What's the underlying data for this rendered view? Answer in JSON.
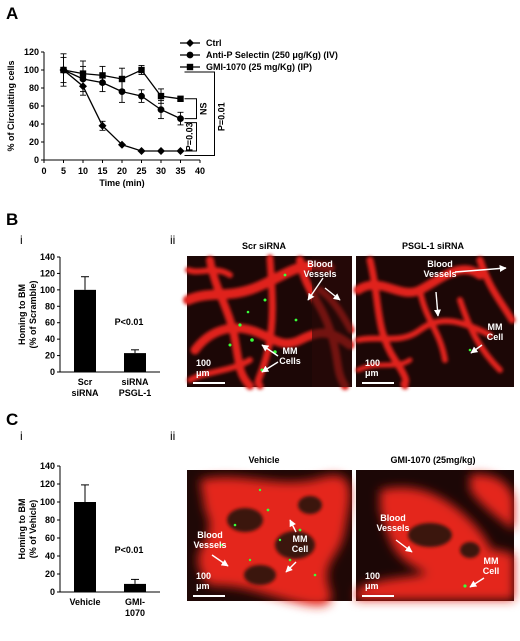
{
  "panels": {
    "A": "A",
    "B": "B",
    "C": "C",
    "B_i": "i",
    "B_ii": "ii",
    "C_i": "i",
    "C_ii": "ii"
  },
  "colors": {
    "vessel": "#e8251e",
    "cell": "#39ff39",
    "bg": "#1c0706"
  },
  "chart_data": [
    {
      "type": "line",
      "panel": "A",
      "xlabel": "Time (min)",
      "ylabel": "% of Circulating cells",
      "xlim": [
        0,
        40
      ],
      "ylim": [
        0,
        120
      ],
      "xticks": [
        0,
        5,
        10,
        15,
        20,
        25,
        30,
        35,
        40
      ],
      "yticks": [
        0,
        20,
        40,
        60,
        80,
        100,
        120
      ],
      "series": [
        {
          "name": "Ctrl",
          "marker": "diamond",
          "x": [
            5,
            10,
            15,
            20,
            25,
            30,
            35
          ],
          "y": [
            100,
            82,
            38,
            17,
            10,
            10,
            10
          ],
          "err": [
            0,
            10,
            5,
            0,
            0,
            0,
            0
          ]
        },
        {
          "name": "Anti-P Selectin (250 μg/Kg) (IV)",
          "marker": "circle",
          "x": [
            5,
            10,
            15,
            20,
            25,
            30,
            35
          ],
          "y": [
            100,
            90,
            86,
            76,
            71,
            56,
            46
          ],
          "err": [
            14,
            14,
            10,
            12,
            7,
            10,
            7
          ]
        },
        {
          "name": "GMI-1070 (25 mg/Kg) (IP)",
          "marker": "square",
          "x": [
            5,
            10,
            15,
            20,
            25,
            30,
            35
          ],
          "y": [
            100,
            96,
            94,
            90,
            100,
            71,
            68
          ],
          "err": [
            18,
            14,
            10,
            12,
            5,
            8,
            0
          ]
        }
      ],
      "annotations": [
        "NS",
        "P=0.03",
        "P=0.01"
      ],
      "legend": "top-right"
    },
    {
      "type": "bar",
      "panel": "B-i",
      "ylabel": "Homing to BM\n(% of Scramble)",
      "ylim": [
        0,
        140
      ],
      "yticks": [
        0,
        20,
        40,
        60,
        80,
        100,
        120,
        140
      ],
      "categories": [
        "Scr\nsiRNA",
        "siRNA\nPSGL-1"
      ],
      "values": [
        100,
        23
      ],
      "errors": [
        16,
        4
      ],
      "annotation": "P<0.01"
    },
    {
      "type": "bar",
      "panel": "C-i",
      "ylabel": "Homing to BM\n(% of Vehicle)",
      "ylim": [
        0,
        140
      ],
      "yticks": [
        0,
        20,
        40,
        60,
        80,
        100,
        120,
        140
      ],
      "categories": [
        "Vehicle",
        "GMI-\n1070"
      ],
      "values": [
        100,
        9
      ],
      "errors": [
        19,
        5
      ],
      "annotation": "P<0.01"
    }
  ],
  "images": {
    "B1": {
      "title": "Scr siRNA",
      "labels": [
        "Blood\nVessels",
        "MM\nCells"
      ],
      "scale": "100\nμm"
    },
    "B2": {
      "title": "PSGL-1 siRNA",
      "labels": [
        "Blood\nVessels",
        "MM\nCell"
      ],
      "scale": "100\nμm"
    },
    "C1": {
      "title": "Vehicle",
      "labels": [
        "Blood\nVessels",
        "MM\nCell"
      ],
      "scale": "100\nμm"
    },
    "C2": {
      "title": "GMI-1070 (25mg/kg)",
      "labels": [
        "Blood\nVessels",
        "MM\nCell"
      ],
      "scale": "100\nμm"
    }
  }
}
